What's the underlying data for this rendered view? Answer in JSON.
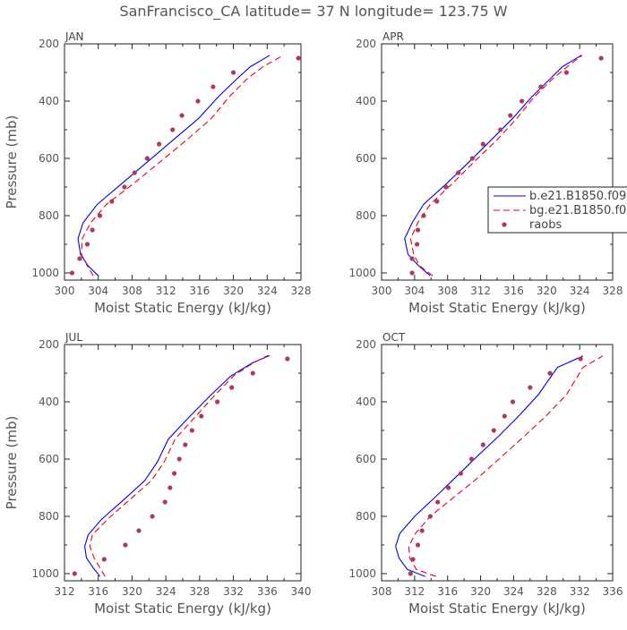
{
  "figure": {
    "title": "SanFrancisco_CA  latitude= 37 N longitude= 123.75 W"
  },
  "series_styles": {
    "b": {
      "color": "#0000ee",
      "dash": ""
    },
    "bg": {
      "color": "#e8001a",
      "dash": "7,4"
    },
    "raobs": {
      "color": "#b03a5c"
    }
  },
  "legend": {
    "placement": "right of APR panel",
    "entries": [
      {
        "key": "b",
        "label": "b.e21.B1850.f09"
      },
      {
        "key": "bg",
        "label": "bg.e21.B1850.f0"
      },
      {
        "key": "raobs",
        "label": "raobs"
      }
    ]
  },
  "chart_data": [
    {
      "type": "line",
      "panel_label": "JAN",
      "xlabel": "Moist Static Energy (kJ/kg)",
      "ylabel": "Pressure (mb)",
      "xlim": [
        300,
        328
      ],
      "xticks": [
        300,
        304,
        308,
        312,
        316,
        320,
        324,
        328
      ],
      "xtick_labels": [
        "300",
        "304",
        "308",
        "312",
        "316",
        "320",
        "324",
        "328"
      ],
      "ylim": [
        1025,
        200
      ],
      "yticks": [
        200,
        400,
        600,
        800,
        1000
      ],
      "ytick_labels": [
        "200",
        "400",
        "600",
        "800",
        "1000"
      ],
      "series": [
        {
          "key": "b",
          "name": "b.e21.B1850.f09",
          "style": "line",
          "points": [
            [
              304.0,
              1010
            ],
            [
              302.8,
              975
            ],
            [
              301.9,
              935
            ],
            [
              301.6,
              880
            ],
            [
              302.2,
              825
            ],
            [
              303.9,
              760
            ],
            [
              306.7,
              690
            ],
            [
              309.7,
              615
            ],
            [
              312.9,
              535
            ],
            [
              315.9,
              460
            ],
            [
              318.2,
              385
            ],
            [
              320.5,
              320
            ],
            [
              322.0,
              280
            ],
            [
              324.3,
              240
            ]
          ]
        },
        {
          "key": "bg",
          "name": "bg.e21.B1850.f0",
          "style": "dashed",
          "points": [
            [
              303.4,
              1010
            ],
            [
              302.7,
              975
            ],
            [
              302.0,
              935
            ],
            [
              302.1,
              880
            ],
            [
              303.1,
              825
            ],
            [
              305.0,
              760
            ],
            [
              308.1,
              690
            ],
            [
              311.2,
              615
            ],
            [
              314.5,
              535
            ],
            [
              317.4,
              460
            ],
            [
              319.5,
              385
            ],
            [
              321.7,
              320
            ],
            [
              323.5,
              280
            ],
            [
              325.9,
              240
            ]
          ]
        },
        {
          "key": "raobs",
          "name": "raobs",
          "style": "markers",
          "points": [
            [
              300.9,
              1000
            ],
            [
              301.8,
              950
            ],
            [
              302.7,
              900
            ],
            [
              303.3,
              850
            ],
            [
              304.2,
              800
            ],
            [
              305.6,
              750
            ],
            [
              307.1,
              700
            ],
            [
              308.3,
              650
            ],
            [
              309.8,
              600
            ],
            [
              311.2,
              550
            ],
            [
              312.8,
              500
            ],
            [
              313.9,
              450
            ],
            [
              315.8,
              400
            ],
            [
              317.6,
              350
            ],
            [
              320.0,
              300
            ],
            [
              327.7,
              250
            ]
          ]
        }
      ]
    },
    {
      "type": "line",
      "panel_label": "APR",
      "xlabel": "Moist Static Energy (kJ/kg)",
      "ylabel": "",
      "xlim": [
        300,
        328
      ],
      "xticks": [
        300,
        304,
        308,
        312,
        316,
        320,
        324,
        328
      ],
      "xtick_labels": [
        "300",
        "304",
        "308",
        "312",
        "316",
        "320",
        "324",
        "328"
      ],
      "ylim": [
        1025,
        200
      ],
      "yticks": [
        200,
        400,
        600,
        800,
        1000
      ],
      "ytick_labels": [
        "200",
        "400",
        "600",
        "800",
        "1000"
      ],
      "series": [
        {
          "key": "b",
          "name": "b.e21.B1850.f09",
          "style": "line",
          "points": [
            [
              305.9,
              1010
            ],
            [
              304.5,
              975
            ],
            [
              303.2,
              935
            ],
            [
              302.8,
              880
            ],
            [
              303.7,
              825
            ],
            [
              305.1,
              760
            ],
            [
              307.8,
              690
            ],
            [
              310.5,
              615
            ],
            [
              313.3,
              535
            ],
            [
              315.9,
              460
            ],
            [
              318.2,
              385
            ],
            [
              320.5,
              320
            ],
            [
              321.9,
              280
            ],
            [
              324.2,
              240
            ]
          ]
        },
        {
          "key": "bg",
          "name": "bg.e21.B1850.f0",
          "style": "dashed",
          "points": [
            [
              306.2,
              1010
            ],
            [
              304.6,
              975
            ],
            [
              303.9,
              935
            ],
            [
              303.5,
              880
            ],
            [
              304.4,
              825
            ],
            [
              305.9,
              760
            ],
            [
              308.5,
              690
            ],
            [
              311.1,
              615
            ],
            [
              314.0,
              535
            ],
            [
              316.4,
              460
            ],
            [
              318.5,
              385
            ],
            [
              320.8,
              320
            ],
            [
              322.5,
              280
            ],
            [
              324.3,
              240
            ]
          ]
        },
        {
          "key": "raobs",
          "name": "raobs",
          "style": "markers",
          "points": [
            [
              303.7,
              1000
            ],
            [
              303.7,
              950
            ],
            [
              304.3,
              900
            ],
            [
              304.4,
              850
            ],
            [
              305.1,
              800
            ],
            [
              306.7,
              750
            ],
            [
              307.8,
              700
            ],
            [
              309.3,
              650
            ],
            [
              311.0,
              600
            ],
            [
              312.3,
              550
            ],
            [
              314.4,
              500
            ],
            [
              315.6,
              450
            ],
            [
              317.0,
              400
            ],
            [
              319.3,
              350
            ],
            [
              322.4,
              300
            ],
            [
              326.6,
              250
            ]
          ]
        }
      ]
    },
    {
      "type": "line",
      "panel_label": "JUL",
      "xlabel": "Moist Static Energy (kJ/kg)",
      "ylabel": "Pressure (mb)",
      "xlim": [
        312,
        340
      ],
      "xticks": [
        312,
        316,
        320,
        324,
        328,
        332,
        336,
        340
      ],
      "xtick_labels": [
        "312",
        "316",
        "320",
        "324",
        "328",
        "332",
        "336",
        "340"
      ],
      "ylim": [
        1025,
        200
      ],
      "yticks": [
        200,
        400,
        600,
        800,
        1000
      ],
      "ytick_labels": [
        "200",
        "400",
        "600",
        "800",
        "1000"
      ],
      "series": [
        {
          "key": "b",
          "name": "b.e21.B1850.f09",
          "style": "line",
          "points": [
            [
              316.2,
              1010
            ],
            [
              315.4,
              980
            ],
            [
              314.6,
              945
            ],
            [
              314.4,
              905
            ],
            [
              314.8,
              865
            ],
            [
              316.4,
              810
            ],
            [
              319.1,
              740
            ],
            [
              321.5,
              675
            ],
            [
              323.0,
              610
            ],
            [
              324.3,
              530
            ],
            [
              326.7,
              455
            ],
            [
              329.2,
              380
            ],
            [
              331.7,
              310
            ],
            [
              334.2,
              265
            ],
            [
              336.3,
              238
            ]
          ]
        },
        {
          "key": "bg",
          "name": "bg.e21.B1850.f0",
          "style": "dashed",
          "points": [
            [
              316.8,
              1010
            ],
            [
              316.2,
              980
            ],
            [
              315.5,
              945
            ],
            [
              315.0,
              905
            ],
            [
              315.3,
              865
            ],
            [
              317.1,
              810
            ],
            [
              319.8,
              740
            ],
            [
              322.3,
              675
            ],
            [
              323.8,
              610
            ],
            [
              325.1,
              530
            ],
            [
              327.4,
              455
            ],
            [
              329.7,
              380
            ],
            [
              332.0,
              310
            ],
            [
              334.3,
              265
            ],
            [
              336.1,
              238
            ]
          ]
        },
        {
          "key": "raobs",
          "name": "raobs",
          "style": "markers",
          "points": [
            [
              313.2,
              1000
            ],
            [
              316.7,
              950
            ],
            [
              319.2,
              900
            ],
            [
              320.8,
              850
            ],
            [
              322.4,
              800
            ],
            [
              323.9,
              750
            ],
            [
              324.5,
              700
            ],
            [
              325.0,
              650
            ],
            [
              325.6,
              600
            ],
            [
              326.3,
              550
            ],
            [
              327.1,
              500
            ],
            [
              328.2,
              450
            ],
            [
              330.1,
              400
            ],
            [
              331.8,
              350
            ],
            [
              334.3,
              300
            ],
            [
              338.4,
              250
            ]
          ]
        }
      ]
    },
    {
      "type": "line",
      "panel_label": "OCT",
      "xlabel": "Moist Static Energy (kJ/kg)",
      "ylabel": "",
      "xlim": [
        308,
        336
      ],
      "xticks": [
        308,
        312,
        316,
        320,
        324,
        328,
        332,
        336
      ],
      "xtick_labels": [
        "308",
        "312",
        "316",
        "320",
        "324",
        "328",
        "332",
        "336"
      ],
      "ylim": [
        1025,
        200
      ],
      "yticks": [
        200,
        400,
        600,
        800,
        1000
      ],
      "ytick_labels": [
        "200",
        "400",
        "600",
        "800",
        "1000"
      ],
      "series": [
        {
          "key": "b",
          "name": "b.e21.B1850.f09",
          "style": "line",
          "points": [
            [
              313.3,
              1010
            ],
            [
              311.1,
              985
            ],
            [
              310.1,
              945
            ],
            [
              309.7,
              905
            ],
            [
              310.2,
              860
            ],
            [
              312.0,
              800
            ],
            [
              314.6,
              730
            ],
            [
              317.1,
              660
            ],
            [
              319.6,
              590
            ],
            [
              322.2,
              520
            ],
            [
              324.6,
              450
            ],
            [
              327.0,
              375
            ],
            [
              329.3,
              280
            ],
            [
              332.4,
              240
            ]
          ]
        },
        {
          "key": "bg",
          "name": "bg.e21.B1850.f0",
          "style": "dashed",
          "points": [
            [
              314.6,
              1010
            ],
            [
              312.2,
              985
            ],
            [
              311.4,
              945
            ],
            [
              311.3,
              905
            ],
            [
              312.1,
              860
            ],
            [
              313.9,
              800
            ],
            [
              316.9,
              730
            ],
            [
              319.9,
              660
            ],
            [
              322.6,
              590
            ],
            [
              325.3,
              520
            ],
            [
              327.9,
              450
            ],
            [
              330.4,
              375
            ],
            [
              332.4,
              280
            ],
            [
              334.8,
              240
            ]
          ]
        },
        {
          "key": "raobs",
          "name": "raobs",
          "style": "markers",
          "points": [
            [
              311.5,
              1000
            ],
            [
              311.8,
              950
            ],
            [
              312.4,
              900
            ],
            [
              312.9,
              850
            ],
            [
              313.9,
              800
            ],
            [
              314.8,
              750
            ],
            [
              316.1,
              700
            ],
            [
              317.6,
              650
            ],
            [
              318.9,
              600
            ],
            [
              320.3,
              550
            ],
            [
              321.6,
              500
            ],
            [
              322.9,
              450
            ],
            [
              323.9,
              400
            ],
            [
              326.0,
              350
            ],
            [
              328.4,
              300
            ],
            [
              332.1,
              250
            ]
          ]
        }
      ]
    }
  ]
}
